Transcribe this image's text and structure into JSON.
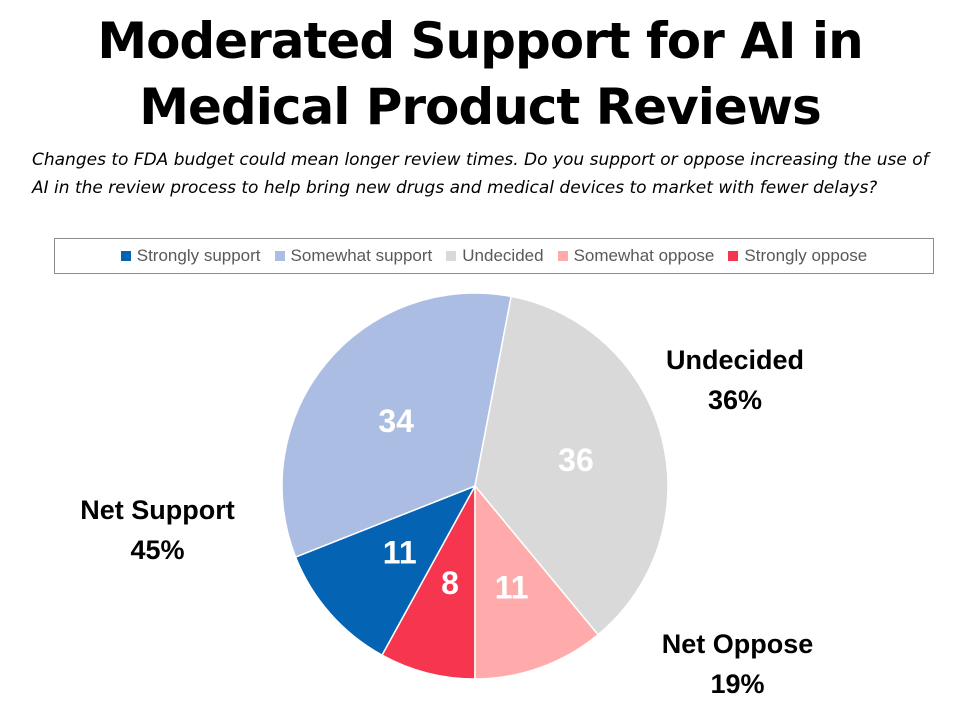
{
  "title_line1": "Moderated Support for AI in",
  "title_line2": "Medical Product Reviews",
  "subtitle": "Changes to FDA budget could mean longer review times. Do you support or oppose increasing the use of AI in the review process to help bring new drugs and medical devices to market with fewer delays?",
  "chart_data": {
    "type": "pie",
    "title": "Moderated Support for AI in Medical Product Reviews",
    "legend_position": "top",
    "slices": [
      {
        "label": "Strongly support",
        "value": 11,
        "display": "11",
        "color": "#0563B4"
      },
      {
        "label": "Somewhat support",
        "value": 34,
        "display": "34",
        "color": "#ABBDE3"
      },
      {
        "label": "Undecided",
        "value": 36,
        "display": "36",
        "color": "#D9D9D9"
      },
      {
        "label": "Somewhat oppose",
        "value": 11,
        "display": "11",
        "color": "#FFABAB"
      },
      {
        "label": "Strongly oppose",
        "value": 8,
        "display": "8",
        "color": "#F6364F"
      }
    ],
    "slice_order_clockwise_from_bottom": [
      "Strongly oppose",
      "Strongly support",
      "Somewhat support",
      "Undecided",
      "Somewhat oppose"
    ]
  },
  "annotations": {
    "undecided": {
      "label": "Undecided",
      "value": "36%"
    },
    "net_support": {
      "label": "Net Support",
      "value": "45%"
    },
    "net_oppose": {
      "label": "Net Oppose",
      "value": "19%"
    }
  }
}
